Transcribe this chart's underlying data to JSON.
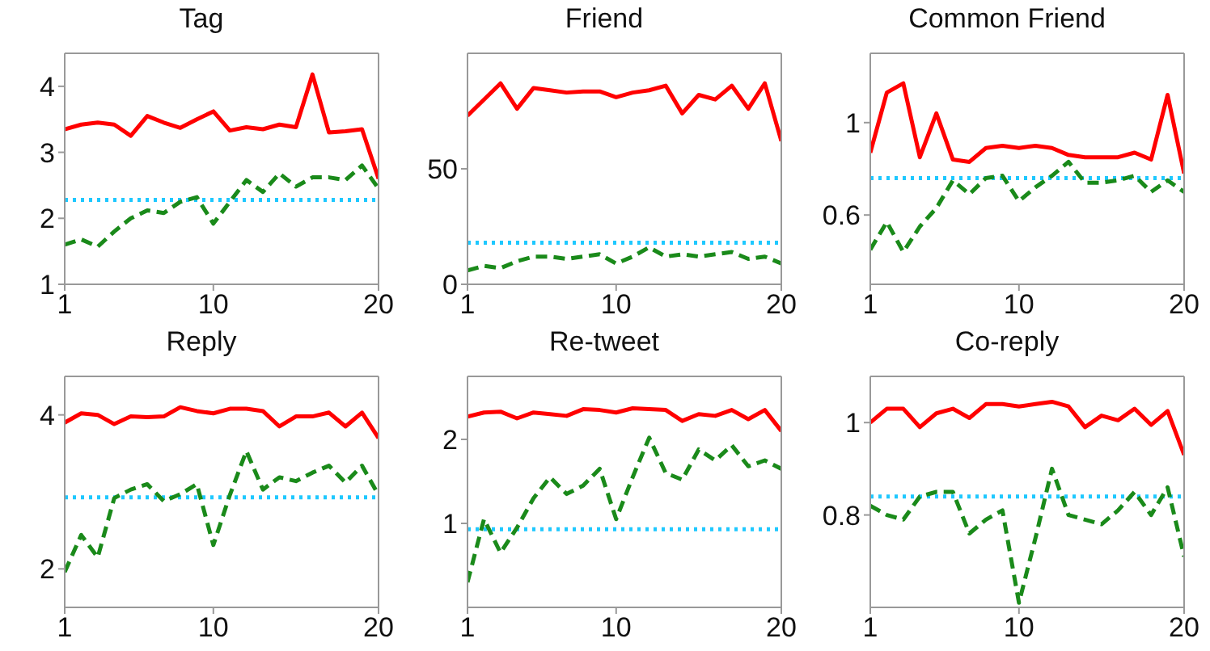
{
  "chart_data": [
    {
      "type": "line",
      "title": "Tag",
      "x": [
        1,
        2,
        3,
        4,
        5,
        6,
        7,
        8,
        9,
        10,
        11,
        12,
        13,
        14,
        15,
        16,
        17,
        18,
        19,
        20
      ],
      "xlim": [
        1,
        20
      ],
      "xticks": [
        1,
        10,
        20
      ],
      "ylim": [
        1,
        4.5
      ],
      "yticks": [
        1,
        2,
        3,
        4
      ],
      "grid": false,
      "legend": false,
      "series": [
        {
          "color": "#ff0000",
          "line_style": "solid",
          "values": [
            3.35,
            3.42,
            3.45,
            3.42,
            3.25,
            3.55,
            3.45,
            3.37,
            3.5,
            3.62,
            3.33,
            3.38,
            3.35,
            3.42,
            3.38,
            4.18,
            3.3,
            3.32,
            3.35,
            2.6
          ]
        },
        {
          "color": "#1a8a1a",
          "line_style": "dashed",
          "values": [
            1.6,
            1.68,
            1.57,
            1.8,
            2.0,
            2.12,
            2.08,
            2.25,
            2.32,
            1.92,
            2.25,
            2.58,
            2.4,
            2.68,
            2.48,
            2.62,
            2.62,
            2.58,
            2.8,
            2.45
          ]
        }
      ],
      "ref_lines": [
        {
          "axis": "y",
          "value": 2.28,
          "color": "#1ec8ff",
          "line_style": "dotted"
        }
      ]
    },
    {
      "type": "line",
      "title": "Friend",
      "x": [
        1,
        2,
        3,
        4,
        5,
        6,
        7,
        8,
        9,
        10,
        11,
        12,
        13,
        14,
        15,
        16,
        17,
        18,
        19,
        20
      ],
      "xlim": [
        1,
        20
      ],
      "xticks": [
        1,
        10,
        20
      ],
      "ylim": [
        0,
        100
      ],
      "yticks": [
        0,
        50
      ],
      "grid": false,
      "legend": false,
      "series": [
        {
          "color": "#ff0000",
          "line_style": "solid",
          "values": [
            73,
            80,
            87,
            76,
            85,
            84,
            83,
            83.5,
            83.5,
            81,
            83,
            84,
            86,
            74,
            82,
            80,
            86,
            76,
            87,
            62
          ]
        },
        {
          "color": "#1a8a1a",
          "line_style": "dashed",
          "values": [
            6,
            8,
            7,
            10,
            12,
            12,
            11,
            12,
            13,
            9,
            12,
            16,
            12,
            13,
            12,
            13,
            14,
            11,
            12,
            9
          ]
        }
      ],
      "ref_lines": [
        {
          "axis": "y",
          "value": 18,
          "color": "#1ec8ff",
          "line_style": "dotted"
        }
      ]
    },
    {
      "type": "line",
      "title": "Common Friend",
      "x": [
        1,
        2,
        3,
        4,
        5,
        6,
        7,
        8,
        9,
        10,
        11,
        12,
        13,
        14,
        15,
        16,
        17,
        18,
        19,
        20
      ],
      "xlim": [
        1,
        20
      ],
      "xticks": [
        1,
        10,
        20
      ],
      "ylim": [
        0.3,
        1.3
      ],
      "yticks": [
        0.6,
        1
      ],
      "grid": false,
      "legend": false,
      "series": [
        {
          "color": "#ff0000",
          "line_style": "solid",
          "values": [
            0.87,
            1.13,
            1.17,
            0.85,
            1.04,
            0.84,
            0.83,
            0.89,
            0.9,
            0.89,
            0.9,
            0.89,
            0.86,
            0.85,
            0.85,
            0.85,
            0.87,
            0.84,
            1.12,
            0.78
          ]
        },
        {
          "color": "#1a8a1a",
          "line_style": "dashed",
          "values": [
            0.45,
            0.57,
            0.44,
            0.55,
            0.63,
            0.75,
            0.69,
            0.76,
            0.77,
            0.66,
            0.72,
            0.77,
            0.83,
            0.74,
            0.74,
            0.75,
            0.77,
            0.7,
            0.75,
            0.7
          ]
        }
      ],
      "ref_lines": [
        {
          "axis": "y",
          "value": 0.76,
          "color": "#1ec8ff",
          "line_style": "dotted"
        }
      ]
    },
    {
      "type": "line",
      "title": "Reply",
      "x": [
        1,
        2,
        3,
        4,
        5,
        6,
        7,
        8,
        9,
        10,
        11,
        12,
        13,
        14,
        15,
        16,
        17,
        18,
        19,
        20
      ],
      "xlim": [
        1,
        20
      ],
      "xticks": [
        1,
        10,
        20
      ],
      "ylim": [
        1.5,
        4.5
      ],
      "yticks": [
        2,
        4
      ],
      "grid": false,
      "legend": false,
      "series": [
        {
          "color": "#ff0000",
          "line_style": "solid",
          "values": [
            3.9,
            4.02,
            4.0,
            3.88,
            3.98,
            3.97,
            3.98,
            4.1,
            4.05,
            4.02,
            4.08,
            4.08,
            4.05,
            3.85,
            3.98,
            3.98,
            4.03,
            3.85,
            4.03,
            3.7
          ]
        },
        {
          "color": "#1a8a1a",
          "line_style": "dashed",
          "values": [
            1.96,
            2.44,
            2.15,
            2.92,
            3.03,
            3.1,
            2.88,
            2.97,
            3.1,
            2.31,
            2.96,
            3.53,
            3.03,
            3.19,
            3.14,
            3.25,
            3.34,
            3.12,
            3.34,
            2.96
          ]
        }
      ],
      "ref_lines": [
        {
          "axis": "y",
          "value": 2.93,
          "color": "#1ec8ff",
          "line_style": "dotted"
        }
      ]
    },
    {
      "type": "line",
      "title": "Re-tweet",
      "x": [
        1,
        2,
        3,
        4,
        5,
        6,
        7,
        8,
        9,
        10,
        11,
        12,
        13,
        14,
        15,
        16,
        17,
        18,
        19,
        20
      ],
      "xlim": [
        1,
        20
      ],
      "xticks": [
        1,
        10,
        20
      ],
      "ylim": [
        0,
        2.75
      ],
      "yticks": [
        1,
        2
      ],
      "grid": false,
      "legend": false,
      "series": [
        {
          "color": "#ff0000",
          "line_style": "solid",
          "values": [
            2.27,
            2.32,
            2.33,
            2.25,
            2.32,
            2.3,
            2.28,
            2.36,
            2.35,
            2.32,
            2.37,
            2.36,
            2.35,
            2.22,
            2.3,
            2.28,
            2.35,
            2.24,
            2.35,
            2.1
          ]
        },
        {
          "color": "#1a8a1a",
          "line_style": "dashed",
          "values": [
            0.3,
            1.05,
            0.65,
            0.95,
            1.3,
            1.55,
            1.35,
            1.45,
            1.65,
            1.05,
            1.55,
            2.02,
            1.6,
            1.52,
            1.88,
            1.75,
            1.93,
            1.68,
            1.75,
            1.65
          ]
        }
      ],
      "ref_lines": [
        {
          "axis": "y",
          "value": 0.93,
          "color": "#1ec8ff",
          "line_style": "dotted"
        }
      ]
    },
    {
      "type": "line",
      "title": "Co-reply",
      "x": [
        1,
        2,
        3,
        4,
        5,
        6,
        7,
        8,
        9,
        10,
        11,
        12,
        13,
        14,
        15,
        16,
        17,
        18,
        19,
        20
      ],
      "xlim": [
        1,
        20
      ],
      "xticks": [
        1,
        10,
        20
      ],
      "ylim": [
        0.6,
        1.1
      ],
      "yticks": [
        0.8,
        1
      ],
      "grid": false,
      "legend": false,
      "series": [
        {
          "color": "#ff0000",
          "line_style": "solid",
          "values": [
            1.0,
            1.03,
            1.03,
            0.99,
            1.02,
            1.03,
            1.01,
            1.04,
            1.04,
            1.035,
            1.04,
            1.045,
            1.035,
            0.99,
            1.015,
            1.005,
            1.03,
            0.995,
            1.025,
            0.93
          ]
        },
        {
          "color": "#1a8a1a",
          "line_style": "dashed",
          "values": [
            0.82,
            0.8,
            0.79,
            0.84,
            0.85,
            0.85,
            0.76,
            0.79,
            0.81,
            0.61,
            0.75,
            0.9,
            0.8,
            0.79,
            0.78,
            0.81,
            0.85,
            0.8,
            0.86,
            0.71
          ]
        }
      ],
      "ref_lines": [
        {
          "axis": "y",
          "value": 0.84,
          "color": "#1ec8ff",
          "line_style": "dotted"
        }
      ]
    }
  ]
}
